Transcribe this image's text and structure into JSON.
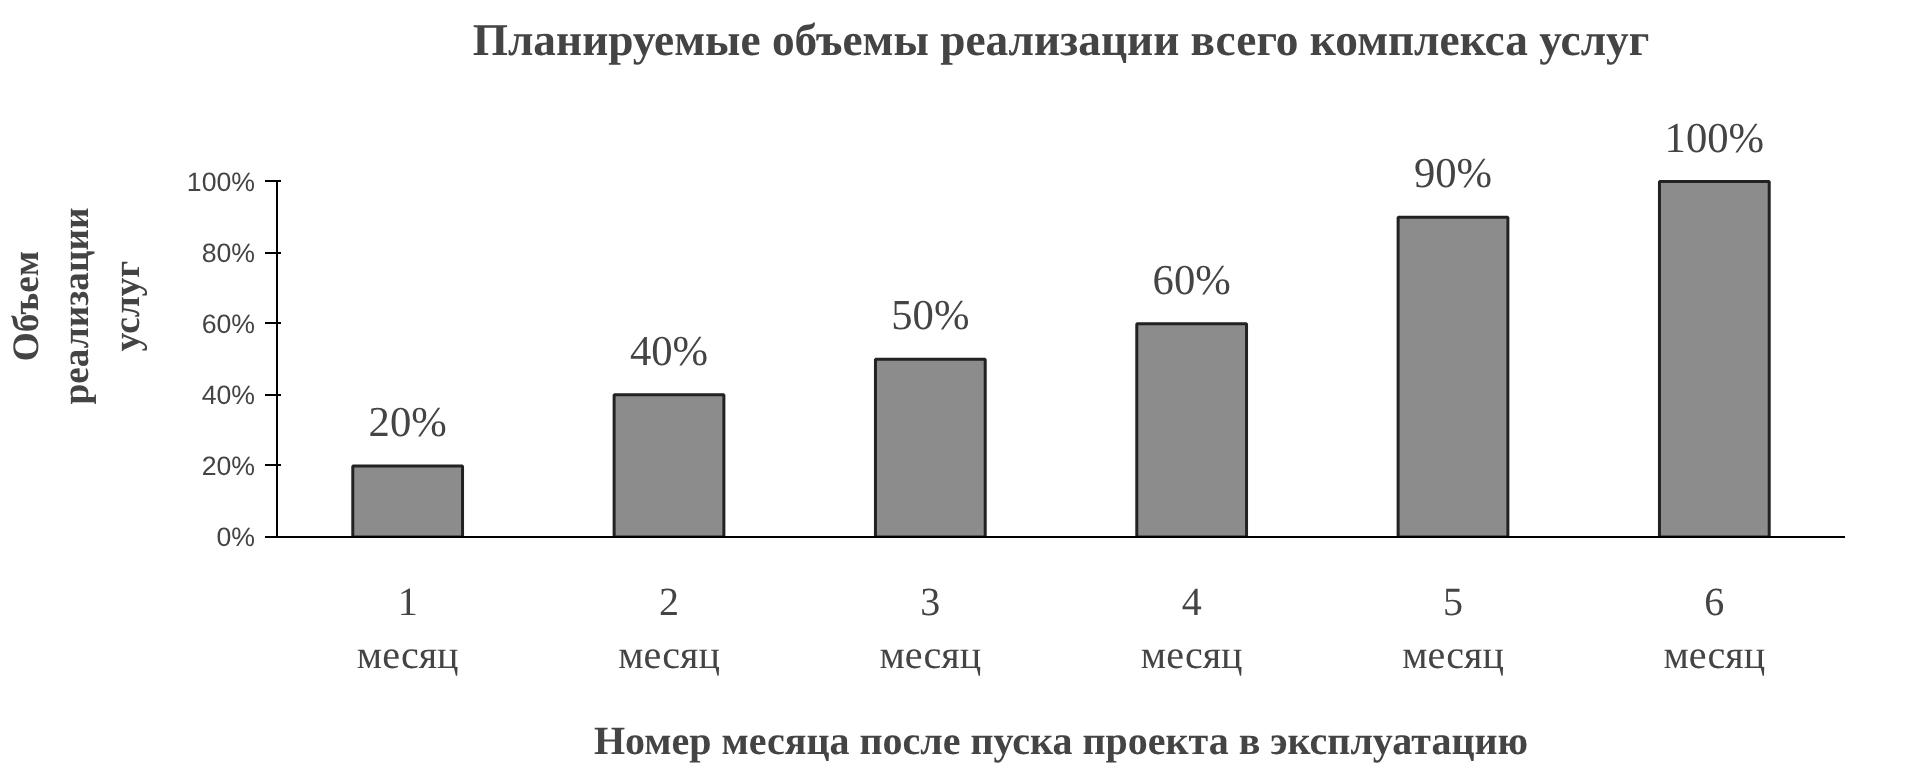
{
  "chart_data": {
    "type": "bar",
    "title": "Планируемые объемы реализации всего комплекса услуг",
    "xlabel": "Номер месяца после пуска проекта в эксплуатацию",
    "ylabel": "Объем реализации услуг",
    "categories": [
      "1 месяц",
      "2 месяц",
      "3 месяц",
      "4 месяц",
      "5 месяц",
      "6 месяц"
    ],
    "values": [
      20,
      40,
      50,
      60,
      90,
      100
    ],
    "value_labels": [
      "20%",
      "40%",
      "50%",
      "60%",
      "90%",
      "100%"
    ],
    "color": "#8c8c8c",
    "ylim": [
      0,
      100
    ],
    "yticks": [
      {
        "value": 0,
        "label": "0%"
      },
      {
        "value": 20,
        "label": "20%"
      },
      {
        "value": 40,
        "label": "40%"
      },
      {
        "value": 60,
        "label": "60%"
      },
      {
        "value": 80,
        "label": "80%"
      },
      {
        "value": 100,
        "label": "100%"
      }
    ],
    "grid": false
  }
}
